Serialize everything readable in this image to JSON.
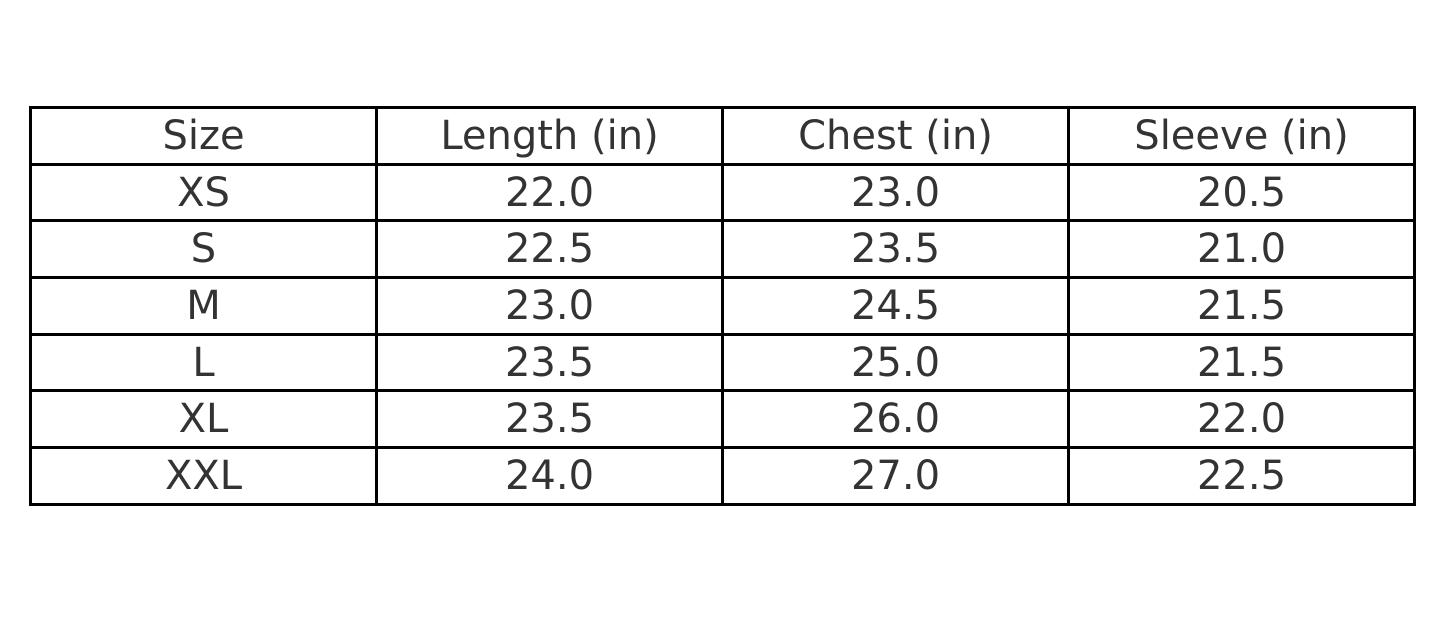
{
  "table": {
    "headers": [
      "Size",
      "Length (in)",
      "Chest (in)",
      "Sleeve (in)"
    ],
    "rows": [
      [
        "XS",
        "22.0",
        "23.0",
        "20.5"
      ],
      [
        "S",
        "22.5",
        "23.5",
        "21.0"
      ],
      [
        "M",
        "23.0",
        "24.5",
        "21.5"
      ],
      [
        "L",
        "23.5",
        "25.0",
        "21.5"
      ],
      [
        "XL",
        "23.5",
        "26.0",
        "22.0"
      ],
      [
        "XXL",
        "24.0",
        "27.0",
        "22.5"
      ]
    ]
  }
}
